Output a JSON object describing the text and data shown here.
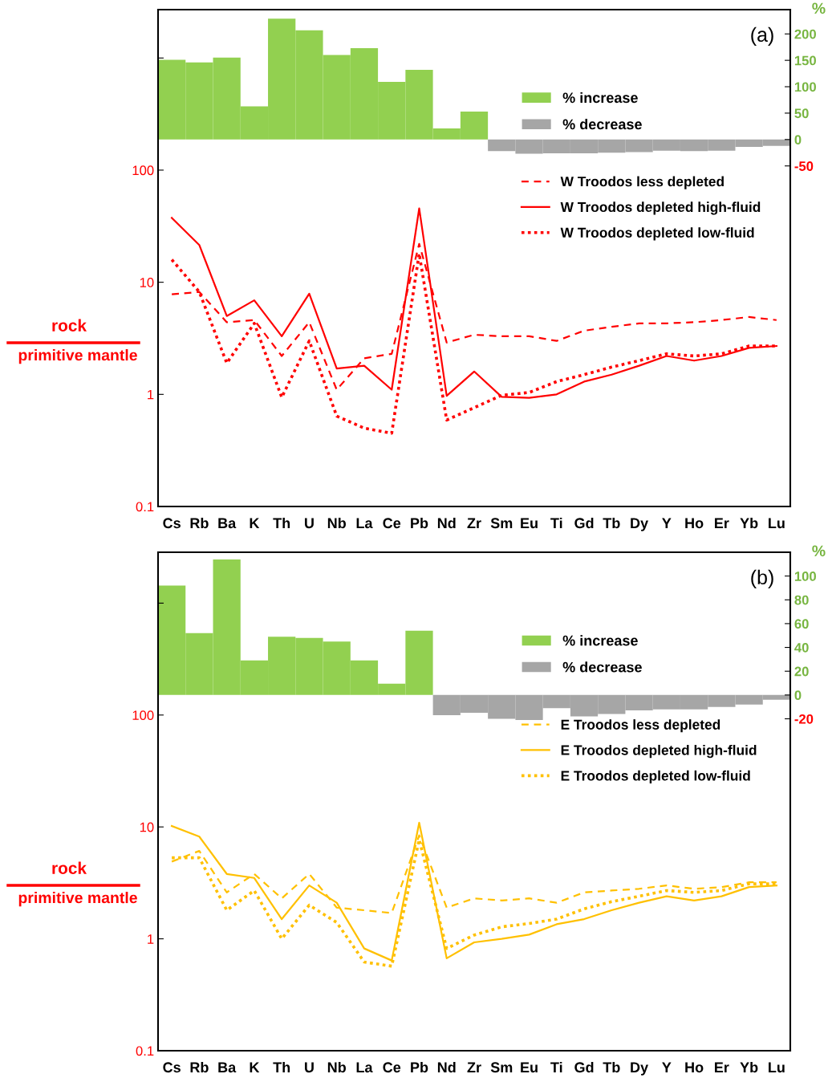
{
  "chart_data": [
    {
      "type": "line",
      "categories": [
        "Cs",
        "Rb",
        "Ba",
        "K",
        "Th",
        "U",
        "Nb",
        "La",
        "Ce",
        "Pb",
        "Nd",
        "Zr",
        "Sm",
        "Eu",
        "Ti",
        "Gd",
        "Tb",
        "Dy",
        "Y",
        "Ho",
        "Er",
        "Yb",
        "Lu"
      ],
      "ylabel": "rock\nprimitive mantle",
      "y2label": "%",
      "log": "y",
      "ylim": [
        0.1,
        2700
      ],
      "yticks": [
        0.1,
        1,
        10,
        100,
        {
          "value": 1000,
          "label": null
        }
      ],
      "y2lim": [
        -695,
        246
      ],
      "y2ticks": [
        -50,
        0,
        50,
        100,
        150,
        200
      ],
      "annotations": [
        "(a)"
      ],
      "legend": "right",
      "grid": false,
      "series": [
        {
          "name": "% increase",
          "type": "bar",
          "axis": "y2",
          "color": "#92d050",
          "values": [
            151,
            146,
            155,
            63,
            229,
            207,
            160,
            173,
            109,
            132,
            21,
            53,
            null,
            null,
            null,
            null,
            null,
            null,
            null,
            null,
            null,
            null,
            null
          ]
        },
        {
          "name": "% decrease",
          "type": "bar",
          "axis": "y2",
          "color": "#a6a6a6",
          "values": [
            null,
            null,
            null,
            null,
            null,
            null,
            null,
            null,
            null,
            null,
            null,
            null,
            -22,
            -27,
            -26,
            -26,
            -25,
            -24,
            -21,
            -22,
            -21,
            -14,
            -12
          ]
        },
        {
          "name": "W Troodos less depleted",
          "line_style": "dashed",
          "color": "#ff0000",
          "values": [
            7.8,
            8.2,
            4.4,
            4.6,
            2.2,
            4.4,
            1.1,
            2.1,
            2.3,
            22,
            2.9,
            3.4,
            3.3,
            3.3,
            3.0,
            3.7,
            4.0,
            4.3,
            4.3,
            4.4,
            4.6,
            4.9,
            4.6
          ]
        },
        {
          "name": "W Troodos depleted high-fluid",
          "line_style": "solid",
          "color": "#ff0000",
          "values": [
            37.5,
            21.5,
            5.0,
            6.9,
            3.3,
            7.9,
            1.7,
            1.8,
            1.1,
            45.5,
            0.97,
            1.6,
            0.95,
            0.93,
            1.0,
            1.3,
            1.5,
            1.8,
            2.2,
            2.0,
            2.2,
            2.6,
            2.7
          ]
        },
        {
          "name": "W Troodos depleted low-fluid",
          "line_style": "dotted",
          "color": "#ff0000",
          "values": [
            15.9,
            8.2,
            1.9,
            4.3,
            0.94,
            3.0,
            0.64,
            0.5,
            0.45,
            18,
            0.59,
            0.76,
            0.98,
            1.04,
            1.3,
            1.5,
            1.75,
            2.0,
            2.3,
            2.2,
            2.3,
            2.7,
            2.7
          ]
        }
      ]
    },
    {
      "type": "line",
      "categories": [
        "Cs",
        "Rb",
        "Ba",
        "K",
        "Th",
        "U",
        "Nb",
        "La",
        "Ce",
        "Pb",
        "Nd",
        "Zr",
        "Sm",
        "Eu",
        "Ti",
        "Gd",
        "Tb",
        "Dy",
        "Y",
        "Ho",
        "Er",
        "Yb",
        "Lu"
      ],
      "ylabel": "rock\nprimitive mantle",
      "y2label": "%",
      "log": "y",
      "ylim": [
        0.1,
        2850
      ],
      "yticks": [
        0.1,
        1,
        10,
        100,
        {
          "value": 1000,
          "label": null
        }
      ],
      "y2lim": [
        -299,
        120
      ],
      "y2ticks": [
        -20,
        0,
        20,
        40,
        60,
        80,
        100
      ],
      "annotations": [
        "(b)"
      ],
      "legend": "right",
      "grid": false,
      "series": [
        {
          "name": "% increase",
          "type": "bar",
          "axis": "y2",
          "color": "#92d050",
          "values": [
            92,
            52,
            114,
            29,
            49,
            48,
            45,
            29,
            9.5,
            54,
            null,
            null,
            null,
            null,
            null,
            null,
            null,
            null,
            null,
            null,
            null,
            null,
            null
          ]
        },
        {
          "name": "% decrease",
          "type": "bar",
          "axis": "y2",
          "color": "#a6a6a6",
          "values": [
            null,
            null,
            null,
            null,
            null,
            null,
            null,
            null,
            null,
            null,
            -17,
            -15,
            -20,
            -21,
            -11,
            -18,
            -16,
            -13,
            -12,
            -12,
            -10,
            -8,
            -4
          ]
        },
        {
          "name": "E Troodos less depleted",
          "line_style": "dashed",
          "color": "#ffc000",
          "values": [
            4.9,
            6.1,
            2.6,
            3.8,
            2.3,
            3.8,
            1.9,
            1.8,
            1.7,
            8.4,
            1.9,
            2.3,
            2.2,
            2.3,
            2.1,
            2.6,
            2.7,
            2.8,
            3.0,
            2.8,
            2.9,
            3.2,
            3.2
          ]
        },
        {
          "name": "E Troodos depleted high-fluid",
          "line_style": "solid",
          "color": "#ffc000",
          "values": [
            10.2,
            8.2,
            3.8,
            3.5,
            1.5,
            3.0,
            2.1,
            0.82,
            0.64,
            10.9,
            0.67,
            0.93,
            1.0,
            1.09,
            1.35,
            1.5,
            1.8,
            2.1,
            2.4,
            2.2,
            2.4,
            2.9,
            3.0
          ]
        },
        {
          "name": "E Troodos depleted low-fluid",
          "line_style": "dotted",
          "color": "#ffc000",
          "values": [
            5.3,
            5.3,
            1.8,
            2.7,
            1.0,
            2.0,
            1.4,
            0.62,
            0.57,
            7.7,
            0.82,
            1.08,
            1.28,
            1.37,
            1.5,
            1.85,
            2.15,
            2.4,
            2.7,
            2.6,
            2.7,
            3.1,
            3.1
          ]
        }
      ]
    }
  ]
}
